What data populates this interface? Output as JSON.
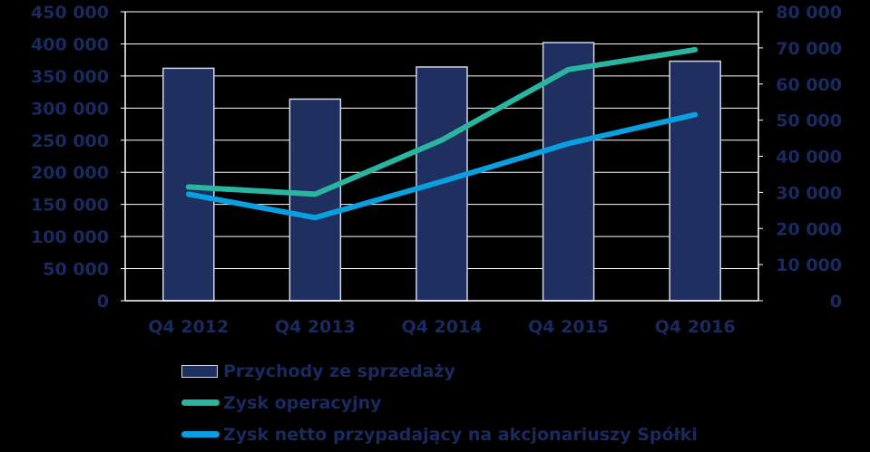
{
  "chart_data": {
    "type": "bar",
    "categories": [
      "Q4 2012",
      "Q4 2013",
      "Q4 2014",
      "Q4 2015",
      "Q4 2016"
    ],
    "series": [
      {
        "name": "Przychody ze sprzedaży",
        "kind": "bar",
        "axis": "left",
        "color": "#1f2f5f",
        "values": [
          362000,
          314000,
          364000,
          402000,
          373000
        ]
      },
      {
        "name": "Zysk operacyjny",
        "kind": "line",
        "axis": "right",
        "color": "#2ab5a0",
        "values": [
          31500,
          29500,
          44500,
          64000,
          69500
        ]
      },
      {
        "name": "Zysk netto przypadający na akcjonariuszy Spółki",
        "kind": "line",
        "axis": "right",
        "color": "#0a9fe0",
        "values": [
          29500,
          23000,
          33000,
          43500,
          51500
        ]
      }
    ],
    "y_left": {
      "min": 0,
      "max": 450000,
      "ticks": [
        "0",
        "50 000",
        "100 000",
        "150 000",
        "200 000",
        "250 000",
        "300 000",
        "350 000",
        "400 000",
        "450 000"
      ]
    },
    "y_right": {
      "min": 0,
      "max": 80000,
      "ticks": [
        "0",
        "10 000",
        "20 000",
        "30 000",
        "40 000",
        "50 000",
        "60 000",
        "70 000",
        "80 000"
      ]
    },
    "grid": true,
    "legend_position": "bottom",
    "title": "",
    "xlabel": "",
    "ylabel": ""
  }
}
